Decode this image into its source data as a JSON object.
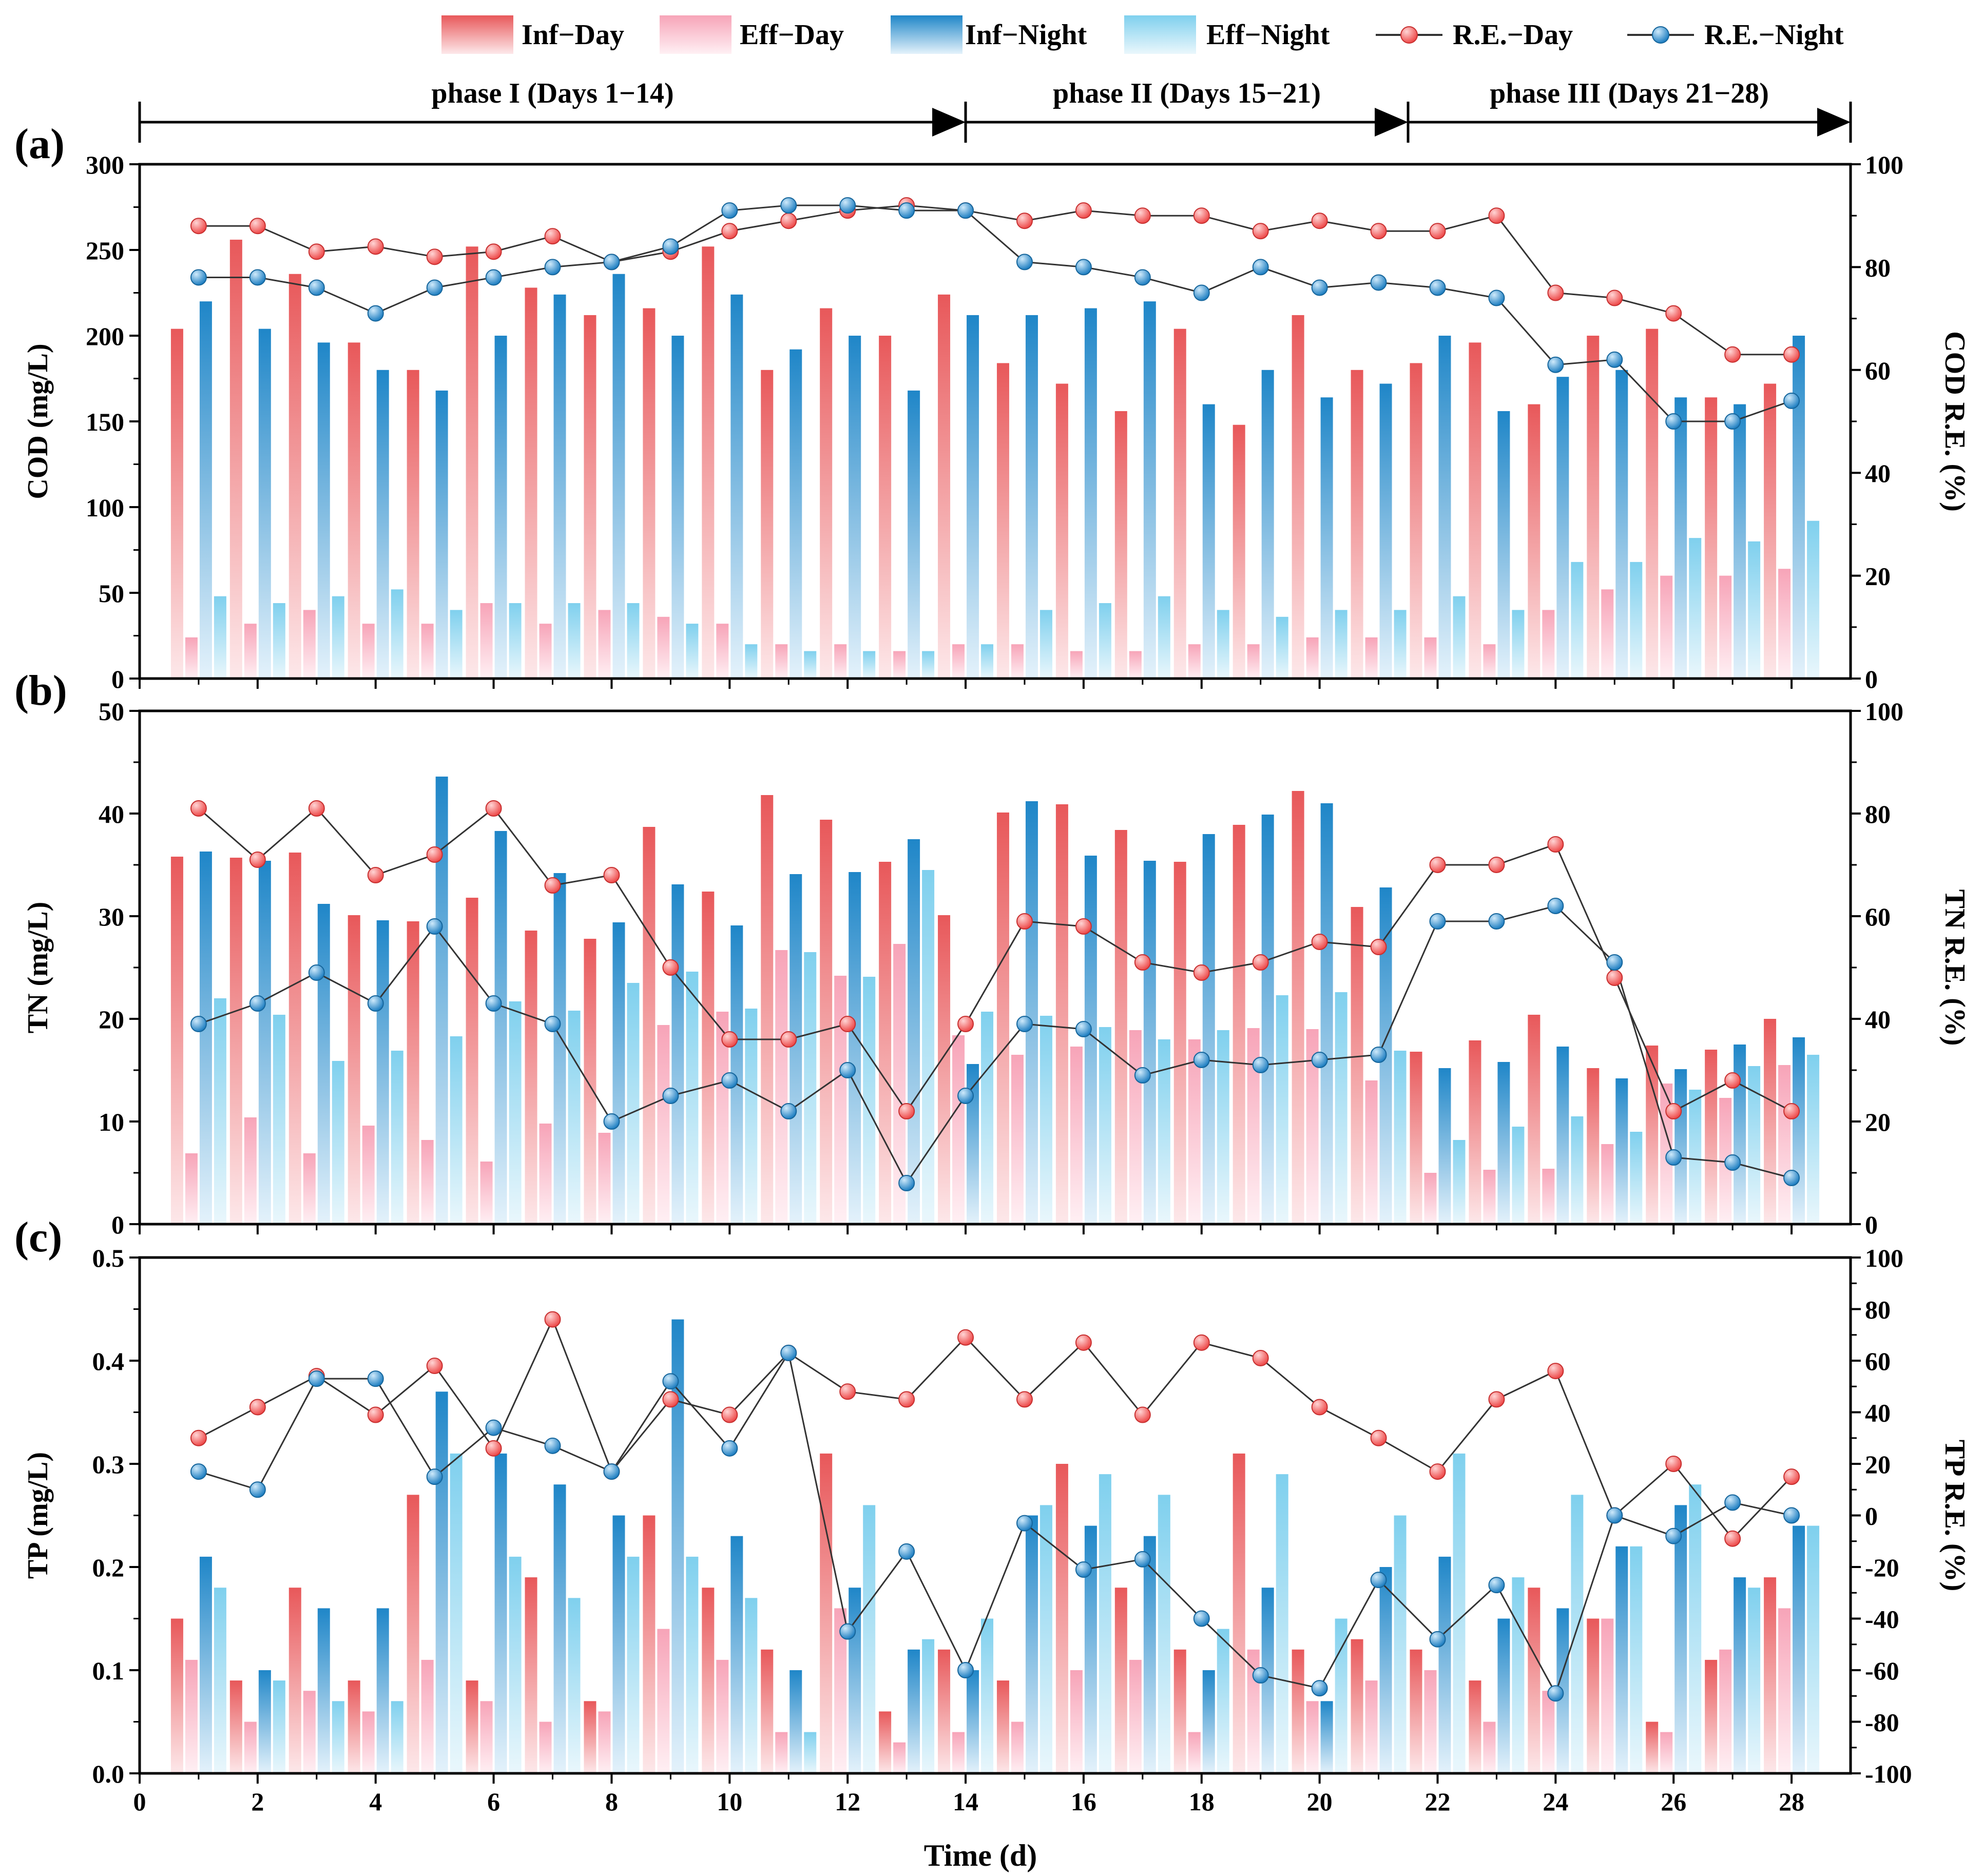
{
  "colors": {
    "inf_day": "#e8585a",
    "eff_day": "#f7a4b8",
    "inf_night": "#1f86c8",
    "eff_night": "#7fd0ee",
    "re_day_marker": "#ee4a4a",
    "re_night_marker": "#1f7fc2",
    "line": "#333333"
  },
  "legend": {
    "inf_day": "Inf−Day",
    "eff_day": "Eff−Day",
    "inf_night": "Inf−Night",
    "eff_night": "Eff−Night",
    "re_day": "R.E.−Day",
    "re_night": "R.E.−Night"
  },
  "phases": [
    {
      "label": "phase I (Days 1−14)",
      "start": 0,
      "end": 14
    },
    {
      "label": "phase II (Days 15−21)",
      "start": 14,
      "end": 21.5
    },
    {
      "label": "phase III (Days 21−28)",
      "start": 21.5,
      "end": 29
    }
  ],
  "chart_data": [
    {
      "type": "bar",
      "panel_label": "(a)",
      "xlabel": "Time (d)",
      "ylabel": "COD (mg/L)",
      "y2label": "COD R.E. (%)",
      "xlim": [
        0,
        29
      ],
      "xticks": [
        0,
        2,
        4,
        6,
        8,
        10,
        12,
        14,
        16,
        18,
        20,
        22,
        24,
        26,
        28
      ],
      "ylim": [
        0,
        300
      ],
      "yticks": [
        0,
        50,
        100,
        150,
        200,
        250,
        300
      ],
      "y2lim": [
        0,
        100
      ],
      "y2ticks": [
        0,
        20,
        40,
        60,
        80,
        100
      ],
      "x": [
        1,
        2,
        3,
        4,
        5,
        6,
        7,
        8,
        9,
        10,
        11,
        12,
        13,
        14,
        15,
        16,
        17,
        18,
        19,
        20,
        21,
        22,
        23,
        24,
        25,
        26,
        27,
        28
      ],
      "bar_series": [
        {
          "name": "Inf−Day",
          "values": [
            204,
            256,
            236,
            196,
            180,
            252,
            228,
            212,
            216,
            252,
            180,
            216,
            200,
            224,
            184,
            172,
            156,
            204,
            148,
            212,
            180,
            184,
            196,
            160,
            200,
            204,
            164,
            172
          ]
        },
        {
          "name": "Eff−Day",
          "values": [
            24,
            32,
            40,
            32,
            32,
            44,
            32,
            40,
            36,
            32,
            20,
            20,
            16,
            20,
            20,
            16,
            16,
            20,
            20,
            24,
            24,
            24,
            20,
            40,
            52,
            60,
            60,
            64
          ]
        },
        {
          "name": "Inf−Night",
          "values": [
            220,
            204,
            196,
            180,
            168,
            200,
            224,
            236,
            200,
            224,
            192,
            200,
            168,
            212,
            212,
            216,
            220,
            160,
            180,
            164,
            172,
            200,
            156,
            176,
            180,
            164,
            160,
            200
          ]
        },
        {
          "name": "Eff−Night",
          "values": [
            48,
            44,
            48,
            52,
            40,
            44,
            44,
            44,
            32,
            20,
            16,
            16,
            16,
            20,
            40,
            44,
            48,
            40,
            36,
            40,
            40,
            48,
            40,
            68,
            68,
            82,
            80,
            92
          ]
        }
      ],
      "line_series": [
        {
          "name": "R.E.−Day",
          "values": [
            88,
            88,
            83,
            84,
            82,
            83,
            86,
            81,
            83,
            87,
            89,
            91,
            92,
            91,
            89,
            91,
            90,
            90,
            87,
            89,
            87,
            87,
            90,
            75,
            74,
            71,
            63,
            63
          ]
        },
        {
          "name": "R.E.−Night",
          "values": [
            78,
            78,
            76,
            71,
            76,
            78,
            80,
            81,
            84,
            91,
            92,
            92,
            91,
            91,
            81,
            80,
            78,
            75,
            80,
            76,
            77,
            76,
            74,
            61,
            62,
            50,
            50,
            54
          ]
        }
      ]
    },
    {
      "type": "bar",
      "panel_label": "(b)",
      "xlabel": "Time (d)",
      "ylabel": "TN (mg/L)",
      "y2label": "TN R.E. (%)",
      "xlim": [
        0,
        29
      ],
      "ylim": [
        0,
        50
      ],
      "yticks": [
        0,
        10,
        20,
        30,
        40,
        50
      ],
      "y2lim": [
        0,
        100
      ],
      "y2ticks": [
        0,
        20,
        40,
        60,
        80,
        100
      ],
      "x": [
        1,
        2,
        3,
        4,
        5,
        6,
        7,
        8,
        9,
        10,
        11,
        12,
        13,
        14,
        15,
        16,
        17,
        18,
        19,
        20,
        21,
        22,
        23,
        24,
        25,
        26,
        27,
        28
      ],
      "bar_series": [
        {
          "name": "Inf−Day",
          "values": [
            35.8,
            35.7,
            36.2,
            30.1,
            29.5,
            31.8,
            28.6,
            27.8,
            38.7,
            32.4,
            41.8,
            39.4,
            35.3,
            30.1,
            40.1,
            40.9,
            38.4,
            35.3,
            38.9,
            42.2,
            30.9,
            16.8,
            17.9,
            20.4,
            15.2,
            17.4,
            17.0,
            20.0
          ]
        },
        {
          "name": "Eff−Day",
          "values": [
            6.9,
            10.4,
            6.9,
            9.6,
            8.2,
            6.1,
            9.8,
            8.9,
            19.4,
            20.7,
            26.7,
            24.2,
            27.3,
            18.4,
            16.5,
            17.3,
            18.9,
            18.0,
            19.1,
            19.0,
            14.0,
            5.0,
            5.3,
            5.4,
            7.8,
            13.7,
            12.3,
            15.5
          ]
        },
        {
          "name": "Inf−Night",
          "values": [
            36.3,
            35.4,
            31.2,
            29.6,
            43.6,
            38.3,
            34.2,
            29.4,
            33.1,
            29.1,
            34.1,
            34.3,
            37.5,
            15.6,
            41.2,
            35.9,
            35.4,
            38.0,
            39.9,
            41.0,
            32.8,
            15.2,
            15.8,
            17.3,
            14.2,
            15.1,
            17.5,
            18.2
          ]
        },
        {
          "name": "Eff−Night",
          "values": [
            22.0,
            20.4,
            15.9,
            16.9,
            18.3,
            21.7,
            20.8,
            23.5,
            24.6,
            21.0,
            26.5,
            24.1,
            34.5,
            20.7,
            20.3,
            19.2,
            18.0,
            18.9,
            22.3,
            22.6,
            16.9,
            8.2,
            9.5,
            10.5,
            9.0,
            13.1,
            15.4,
            16.5
          ]
        }
      ],
      "line_series": [
        {
          "name": "R.E.−Day",
          "values": [
            81,
            71,
            81,
            68,
            72,
            81,
            66,
            68,
            50,
            36,
            36,
            39,
            22,
            39,
            59,
            58,
            51,
            49,
            51,
            55,
            54,
            70,
            70,
            74,
            48,
            22,
            28,
            22
          ]
        },
        {
          "name": "R.E.−Night",
          "values": [
            39,
            43,
            49,
            43,
            58,
            43,
            39,
            20,
            25,
            28,
            22,
            30,
            8,
            25,
            39,
            38,
            29,
            32,
            31,
            32,
            33,
            59,
            59,
            62,
            51,
            13,
            12,
            9
          ]
        }
      ]
    },
    {
      "type": "bar",
      "panel_label": "(c)",
      "xlabel": "Time (d)",
      "ylabel": "TP (mg/L)",
      "y2label": "TP R.E. (%)",
      "xlim": [
        0,
        29
      ],
      "ylim": [
        0,
        0.5
      ],
      "yticks": [
        "0.0",
        "0.1",
        "0.2",
        "0.3",
        "0.4",
        "0.5"
      ],
      "y2lim": [
        -100,
        100
      ],
      "y2ticks": [
        -100,
        -80,
        -60,
        -40,
        -20,
        0,
        20,
        40,
        60,
        80,
        100
      ],
      "x": [
        1,
        2,
        3,
        4,
        5,
        6,
        7,
        8,
        9,
        10,
        11,
        12,
        13,
        14,
        15,
        16,
        17,
        18,
        19,
        20,
        21,
        22,
        23,
        24,
        25,
        26,
        27,
        28
      ],
      "bar_series": [
        {
          "name": "Inf−Day",
          "values": [
            0.15,
            0.09,
            0.18,
            0.09,
            0.27,
            0.09,
            0.19,
            0.07,
            0.25,
            0.18,
            0.12,
            0.31,
            0.06,
            0.12,
            0.09,
            0.3,
            0.18,
            0.12,
            0.31,
            0.12,
            0.13,
            0.12,
            0.09,
            0.18,
            0.15,
            0.05,
            0.11,
            0.19
          ]
        },
        {
          "name": "Eff−Day",
          "values": [
            0.11,
            0.05,
            0.08,
            0.06,
            0.11,
            0.07,
            0.05,
            0.06,
            0.14,
            0.11,
            0.04,
            0.16,
            0.03,
            0.04,
            0.05,
            0.1,
            0.11,
            0.04,
            0.12,
            0.07,
            0.09,
            0.1,
            0.05,
            0.08,
            0.15,
            0.04,
            0.12,
            0.16
          ]
        },
        {
          "name": "Inf−Night",
          "values": [
            0.21,
            0.1,
            0.16,
            0.16,
            0.37,
            0.31,
            0.28,
            0.25,
            0.44,
            0.23,
            0.1,
            0.18,
            0.12,
            0.1,
            0.25,
            0.24,
            0.23,
            0.1,
            0.18,
            0.07,
            0.2,
            0.21,
            0.15,
            0.16,
            0.22,
            0.26,
            0.19,
            0.24
          ]
        },
        {
          "name": "Eff−Night",
          "values": [
            0.18,
            0.09,
            0.07,
            0.07,
            0.31,
            0.21,
            0.17,
            0.21,
            0.21,
            0.17,
            0.04,
            0.26,
            0.13,
            0.15,
            0.26,
            0.29,
            0.27,
            0.14,
            0.29,
            0.15,
            0.25,
            0.31,
            0.19,
            0.27,
            0.22,
            0.28,
            0.18,
            0.24
          ]
        }
      ],
      "line_series": [
        {
          "name": "R.E.−Day",
          "values": [
            30,
            42,
            54,
            39,
            58,
            26,
            76,
            17,
            45,
            39,
            63,
            48,
            45,
            69,
            45,
            67,
            39,
            67,
            61,
            42,
            30,
            17,
            45,
            56,
            0,
            20,
            -9,
            15
          ]
        },
        {
          "name": "R.E.−Night",
          "values": [
            17,
            10,
            53,
            53,
            15,
            34,
            27,
            17,
            52,
            26,
            63,
            -45,
            -14,
            -60,
            -3,
            -21,
            -17,
            -40,
            -62,
            -67,
            -25,
            -48,
            -27,
            -69,
            0,
            -8,
            5,
            0
          ]
        }
      ]
    }
  ]
}
